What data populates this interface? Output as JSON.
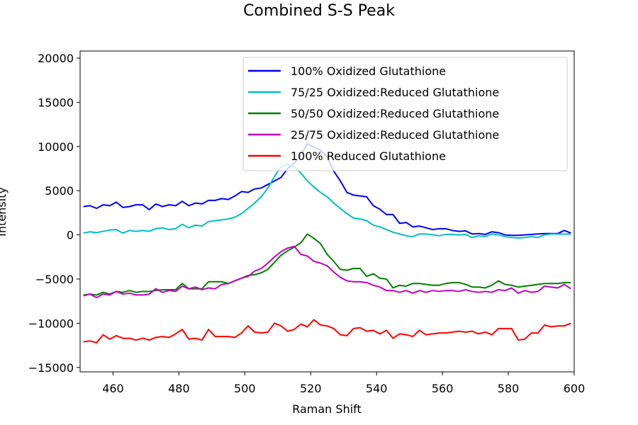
{
  "chart_data": {
    "type": "line",
    "title": "Combined S-S Peak",
    "xlabel": "Raman Shift",
    "ylabel": "Intensity",
    "xlim": [
      450,
      600
    ],
    "ylim": [
      -15500,
      20800
    ],
    "xticks": [
      460,
      480,
      500,
      520,
      540,
      560,
      580,
      600
    ],
    "yticks": [
      -15000,
      -10000,
      -5000,
      0,
      5000,
      10000,
      15000,
      20000
    ],
    "ytick_labels": [
      "−15000",
      "−10000",
      "−5000",
      "0",
      "5000",
      "10000",
      "15000",
      "20000"
    ],
    "legend_position": "upper right",
    "grid": false,
    "x": [
      451,
      453,
      455,
      457,
      459,
      461,
      463,
      465,
      467,
      469,
      471,
      473,
      475,
      477,
      479,
      481,
      483,
      485,
      487,
      489,
      491,
      493,
      495,
      497,
      499,
      501,
      503,
      505,
      507,
      509,
      511,
      513,
      515,
      517,
      519,
      521,
      523,
      525,
      527,
      529,
      531,
      533,
      535,
      537,
      539,
      541,
      543,
      545,
      547,
      549,
      551,
      553,
      555,
      557,
      559,
      561,
      563,
      565,
      567,
      569,
      571,
      573,
      575,
      577,
      579,
      581,
      583,
      585,
      587,
      589,
      591,
      593,
      595,
      597,
      599
    ],
    "series": [
      {
        "name": "100% Oxidized Glutathione",
        "color": "#0000ff",
        "values": [
          3200,
          3300,
          3000,
          3400,
          3300,
          3700,
          3100,
          3200,
          3400,
          3400,
          2850,
          3500,
          3200,
          3400,
          3300,
          3800,
          3300,
          3600,
          3500,
          3900,
          3900,
          4100,
          4000,
          4400,
          4900,
          4800,
          5200,
          5300,
          5700,
          6100,
          6500,
          7500,
          8100,
          9000,
          10300,
          9900,
          9600,
          8800,
          7200,
          6100,
          4800,
          4500,
          4400,
          4300,
          3300,
          2900,
          2300,
          2300,
          1300,
          1400,
          900,
          1000,
          800,
          600,
          700,
          700,
          500,
          400,
          450,
          100,
          150,
          50,
          350,
          250,
          0,
          -50,
          -50,
          0,
          50,
          100,
          150,
          150,
          150,
          500,
          200
        ]
      },
      {
        "name": "75/25 Oxidized:Reduced Glutathione",
        "color": "#00bfbf",
        "values": [
          200,
          350,
          250,
          400,
          550,
          600,
          200,
          500,
          400,
          500,
          400,
          700,
          800,
          600,
          700,
          1200,
          800,
          1100,
          1000,
          1500,
          1600,
          1700,
          1800,
          2000,
          2400,
          3000,
          3600,
          4300,
          5300,
          6600,
          7700,
          8000,
          7700,
          7000,
          6100,
          5400,
          4800,
          4300,
          3600,
          3000,
          2400,
          1900,
          1800,
          1600,
          1100,
          900,
          600,
          300,
          100,
          -100,
          -200,
          100,
          100,
          0,
          -100,
          50,
          50,
          0,
          50,
          -300,
          -100,
          -200,
          100,
          0,
          -200,
          -300,
          -350,
          -300,
          -200,
          -300,
          0,
          100,
          100,
          100,
          100
        ]
      },
      {
        "name": "50/50 Oxidized:Reduced Glutathione",
        "color": "#008000",
        "values": [
          -6800,
          -6700,
          -6800,
          -6500,
          -6700,
          -6400,
          -6500,
          -6300,
          -6500,
          -6400,
          -6400,
          -6300,
          -6200,
          -6200,
          -6200,
          -5500,
          -6100,
          -6100,
          -6100,
          -5300,
          -5300,
          -5300,
          -5500,
          -5200,
          -4900,
          -4600,
          -4500,
          -4300,
          -3900,
          -3100,
          -2300,
          -1800,
          -1400,
          -900,
          100,
          -400,
          -1000,
          -2200,
          -3000,
          -3900,
          -4000,
          -3800,
          -3800,
          -4700,
          -4400,
          -4900,
          -5000,
          -6000,
          -5700,
          -5800,
          -5500,
          -5500,
          -5600,
          -5700,
          -5700,
          -5500,
          -5400,
          -5400,
          -5600,
          -5900,
          -5900,
          -6000,
          -5700,
          -5200,
          -5600,
          -5700,
          -5900,
          -5800,
          -5700,
          -5600,
          -5500,
          -5500,
          -5500,
          -5400,
          -5400
        ]
      },
      {
        "name": "25/75 Oxidized:Reduced Glutathione",
        "color": "#bf00bf",
        "values": [
          -6900,
          -6700,
          -7100,
          -6700,
          -6800,
          -6400,
          -6700,
          -6600,
          -6800,
          -6800,
          -6700,
          -6100,
          -6500,
          -6300,
          -6400,
          -5800,
          -6100,
          -5900,
          -6200,
          -6000,
          -6100,
          -5600,
          -5500,
          -5200,
          -4900,
          -4700,
          -4100,
          -3800,
          -3200,
          -2500,
          -1900,
          -1500,
          -1300,
          -2200,
          -2400,
          -3000,
          -3200,
          -3500,
          -4200,
          -4800,
          -5200,
          -5300,
          -5300,
          -5400,
          -5700,
          -5900,
          -6300,
          -6300,
          -6500,
          -6300,
          -6600,
          -6300,
          -6500,
          -6300,
          -6400,
          -6300,
          -6300,
          -6400,
          -6200,
          -6400,
          -6500,
          -6400,
          -6500,
          -6200,
          -6300,
          -6000,
          -6600,
          -6300,
          -6500,
          -6400,
          -5800,
          -5900,
          -6000,
          -5600,
          -6100
        ]
      },
      {
        "name": "100% Reduced Glutathione",
        "color": "#ff0000",
        "values": [
          -12100,
          -12000,
          -12200,
          -11300,
          -11800,
          -11400,
          -11700,
          -11700,
          -11900,
          -11700,
          -11900,
          -11600,
          -11500,
          -11600,
          -11200,
          -10700,
          -11800,
          -11700,
          -11900,
          -10700,
          -11500,
          -11500,
          -11500,
          -11600,
          -11100,
          -10300,
          -11000,
          -11100,
          -11000,
          -10000,
          -10300,
          -10900,
          -10700,
          -10100,
          -10400,
          -9600,
          -10200,
          -10300,
          -10600,
          -11300,
          -11400,
          -10600,
          -10500,
          -10900,
          -10800,
          -11200,
          -10800,
          -11700,
          -11200,
          -11300,
          -11500,
          -10800,
          -11300,
          -11200,
          -11100,
          -11100,
          -11000,
          -10900,
          -11000,
          -10900,
          -11200,
          -11000,
          -11300,
          -10600,
          -10600,
          -10600,
          -11900,
          -11800,
          -11100,
          -11100,
          -10200,
          -10400,
          -10300,
          -10300,
          -10000
        ]
      }
    ]
  }
}
